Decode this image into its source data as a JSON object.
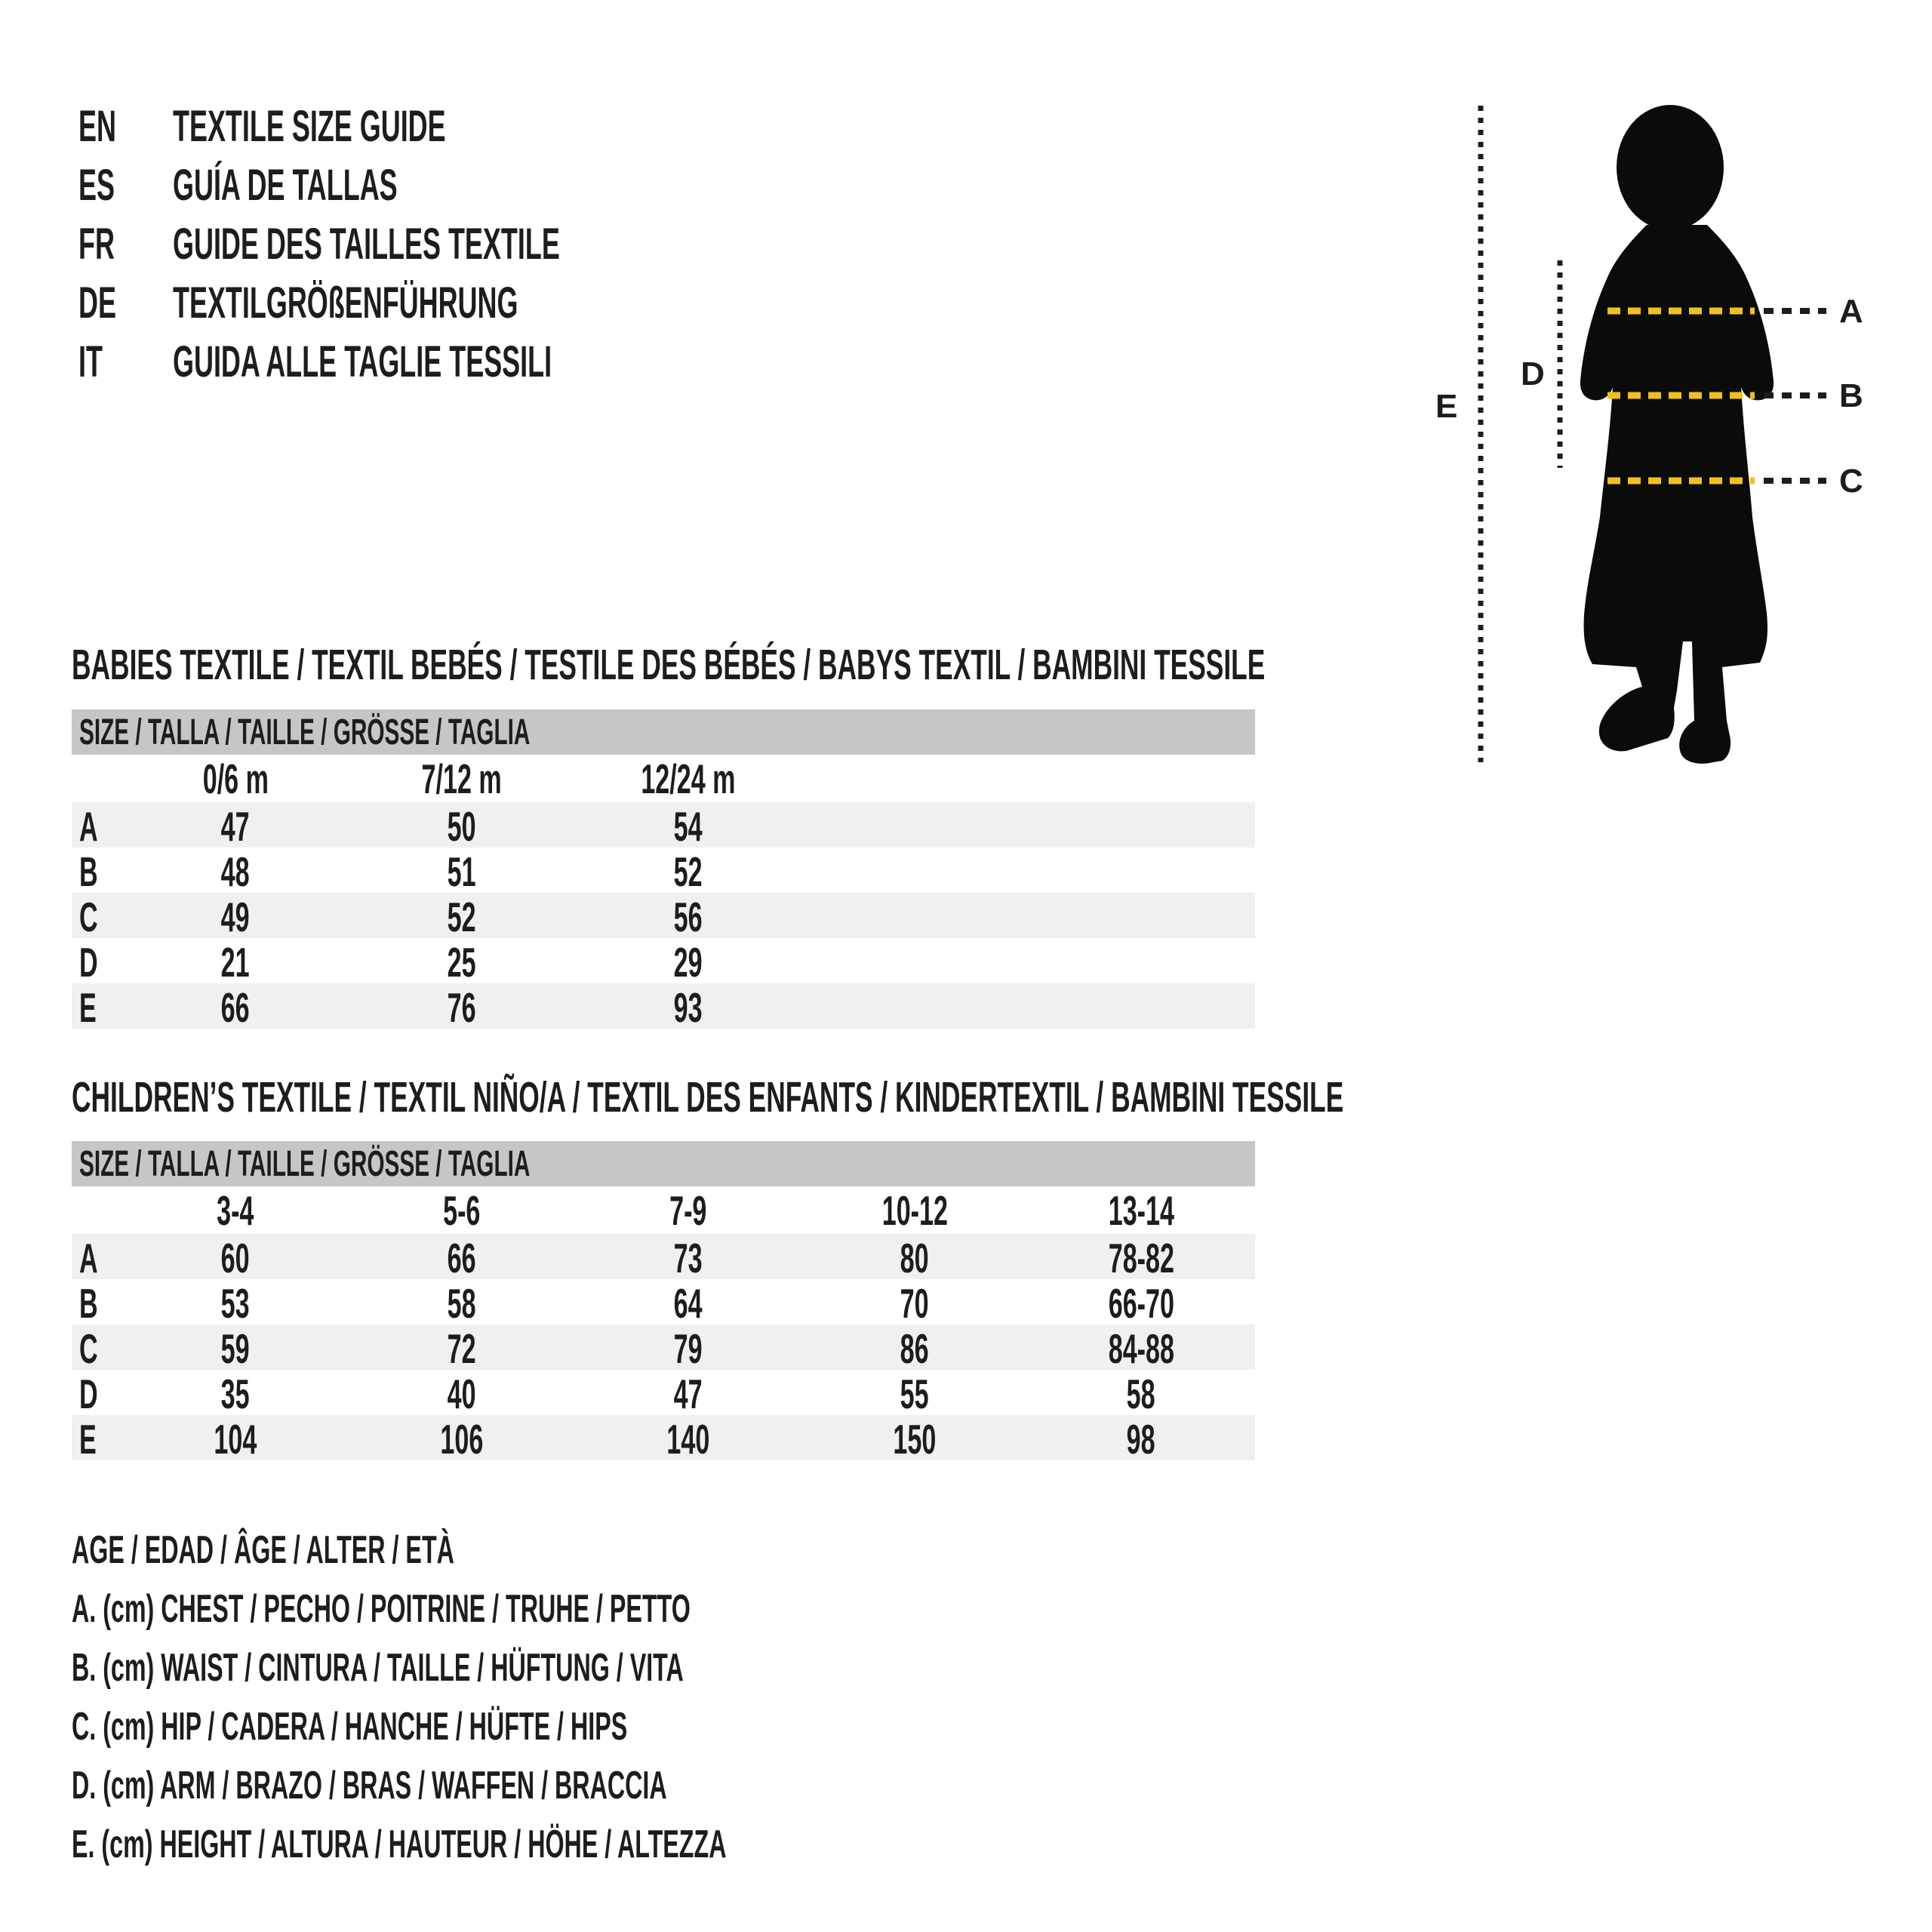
{
  "colors": {
    "text": "#1d1d1b",
    "header_bar_gray": "#c6c6c6",
    "row_stripe_gray": "#f0f0f0",
    "measure_dash_yellow": "#f0c020",
    "silhouette_black": "#0b0b09"
  },
  "languages": [
    {
      "code": "EN",
      "title": "TEXTILE SIZE GUIDE"
    },
    {
      "code": "ES",
      "title": "GUÍA DE TALLAS"
    },
    {
      "code": "FR",
      "title": "GUIDE DES TAILLES TEXTILE"
    },
    {
      "code": "DE",
      "title": "TEXTILGRÖßENFÜHRUNG"
    },
    {
      "code": "IT",
      "title": "GUIDA ALLE TAGLIE TESSILI"
    }
  ],
  "figure": {
    "labels": {
      "A": "A",
      "B": "B",
      "C": "C",
      "D": "D",
      "E": "E"
    }
  },
  "babies_table": {
    "title": "BABIES TEXTILE / TEXTIL BEBÉS / TESTILE DES BÉBÉS / BABYS TEXTIL / BAMBINI TESSILE",
    "size_header": "SIZE / TALLA / TAILLE / GRÖSSE / TAGLIA",
    "columns": [
      "0/6 m",
      "7/12 m",
      "12/24 m"
    ],
    "rows": [
      {
        "label": "A",
        "values": [
          "47",
          "50",
          "54"
        ]
      },
      {
        "label": "B",
        "values": [
          "48",
          "51",
          "52"
        ]
      },
      {
        "label": "C",
        "values": [
          "49",
          "52",
          "56"
        ]
      },
      {
        "label": "D",
        "values": [
          "21",
          "25",
          "29"
        ]
      },
      {
        "label": "E",
        "values": [
          "66",
          "76",
          "93"
        ]
      }
    ]
  },
  "children_table": {
    "title": "CHILDREN’S TEXTILE / TEXTIL NIÑO/A / TEXTIL DES ENFANTS / KINDERTEXTIL / BAMBINI TESSILE",
    "size_header": "SIZE / TALLA / TAILLE / GRÖSSE / TAGLIA",
    "columns": [
      "3-4",
      "5-6",
      "7-9",
      "10-12",
      "13-14"
    ],
    "rows": [
      {
        "label": "A",
        "values": [
          "60",
          "66",
          "73",
          "80",
          "78-82"
        ]
      },
      {
        "label": "B",
        "values": [
          "53",
          "58",
          "64",
          "70",
          "66-70"
        ]
      },
      {
        "label": "C",
        "values": [
          "59",
          "72",
          "79",
          "86",
          "84-88"
        ]
      },
      {
        "label": "D",
        "values": [
          "35",
          "40",
          "47",
          "55",
          "58"
        ]
      },
      {
        "label": "E",
        "values": [
          "104",
          "106",
          "140",
          "150",
          "98"
        ]
      }
    ]
  },
  "legend": {
    "lines": [
      "AGE / EDAD / ÂGE / ALTER / ETÀ",
      "A. (cm) CHEST / PECHO / POITRINE / TRUHE / PETTO",
      "B. (cm) WAIST / CINTURA / TAILLE / HÜFTUNG / VITA",
      "C. (cm) HIP / CADERA / HANCHE / HÜFTE / HIPS",
      "D. (cm) ARM / BRAZO / BRAS / WAFFEN / BRACCIA",
      "E. (cm) HEIGHT / ALTURA / HAUTEUR / HÖHE / ALTEZZA"
    ]
  }
}
